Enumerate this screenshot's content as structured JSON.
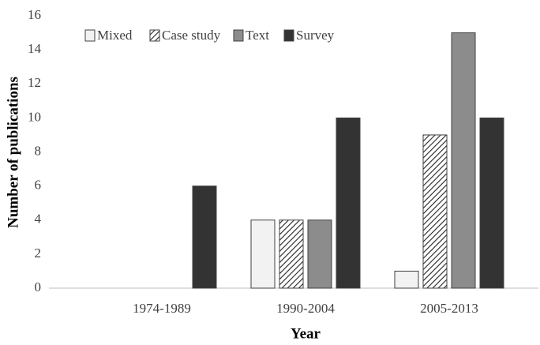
{
  "chart_data": {
    "type": "bar",
    "x_label": "Year",
    "y_label": "Number of publications",
    "categories": [
      "1974-1989",
      "1990-2004",
      "2005-2013"
    ],
    "series": [
      {
        "name": "Mixed",
        "color": "#f2f2f2",
        "values": [
          0,
          4,
          1
        ]
      },
      {
        "name": "Case study",
        "color": "#ffffff",
        "hatch": true,
        "values": [
          0,
          4,
          9
        ]
      },
      {
        "name": "Text",
        "color": "#8c8c8c",
        "values": [
          0,
          4,
          15
        ]
      },
      {
        "name": "Survey",
        "color": "#333333",
        "values": [
          6,
          10,
          10
        ]
      }
    ],
    "ylim": [
      0,
      16
    ],
    "yticks": [
      0,
      2,
      4,
      6,
      8,
      10,
      12,
      14,
      16
    ],
    "legend": "top-left"
  }
}
